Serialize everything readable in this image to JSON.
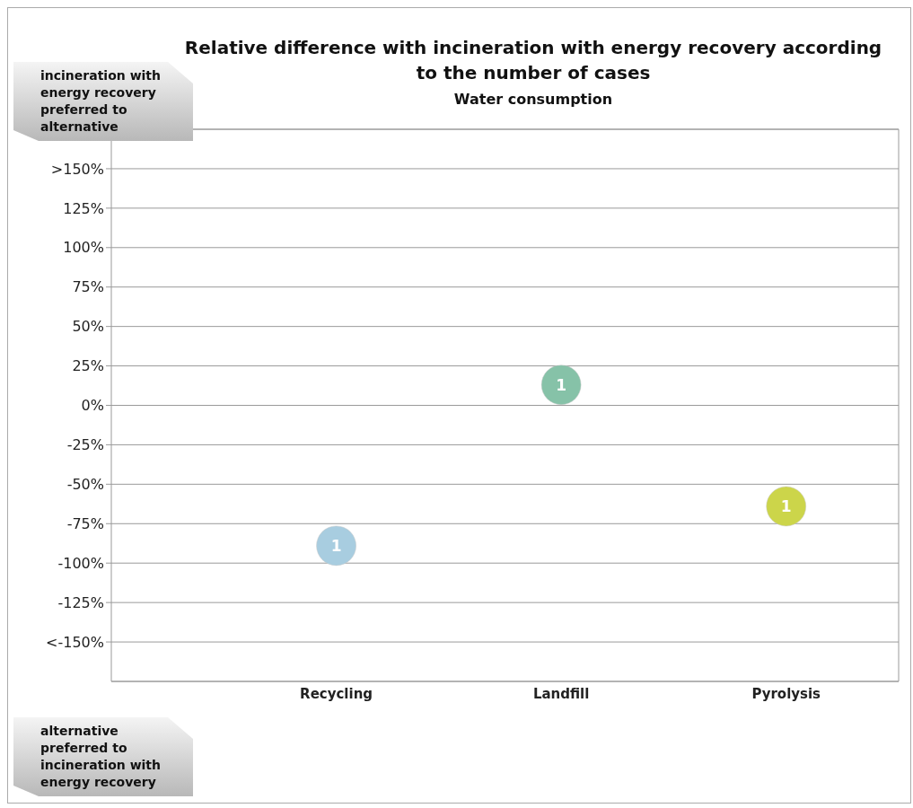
{
  "chart_data": {
    "type": "bubble",
    "title": "Relative difference with incineration with energy recovery according to the number of cases",
    "subtitle": "Water consumption",
    "categories": [
      "Recycling",
      "Landfill",
      "Pyrolysis"
    ],
    "values": [
      -89,
      13,
      -64
    ],
    "sizes": [
      1,
      1,
      1
    ],
    "colors": [
      "#a8cde0",
      "#86c2a8",
      "#ccd54a"
    ],
    "ylim": [
      -175,
      175
    ],
    "yticks": [
      {
        "value": -150,
        "label": "<-150%"
      },
      {
        "value": -125,
        "label": "-125%"
      },
      {
        "value": -100,
        "label": "-100%"
      },
      {
        "value": -75,
        "label": "-75%"
      },
      {
        "value": -50,
        "label": "-50%"
      },
      {
        "value": -25,
        "label": "-25%"
      },
      {
        "value": 0,
        "label": "0%"
      },
      {
        "value": 25,
        "label": "25%"
      },
      {
        "value": 50,
        "label": "50%"
      },
      {
        "value": 75,
        "label": "75%"
      },
      {
        "value": 100,
        "label": "100%"
      },
      {
        "value": 125,
        "label": "125%"
      },
      {
        "value": 150,
        "label": ">150%"
      }
    ],
    "grid": "y",
    "annotations": [
      "incineration with energy recovery preferred to alternative",
      "alternative preferred to incineration with energy recovery",
      {
        "text": "1",
        "x": "Recycling",
        "y": -89
      },
      {
        "text": "1",
        "x": "Landfill",
        "y": 13
      },
      {
        "text": "1",
        "x": "Pyrolysis",
        "y": -64
      }
    ]
  }
}
